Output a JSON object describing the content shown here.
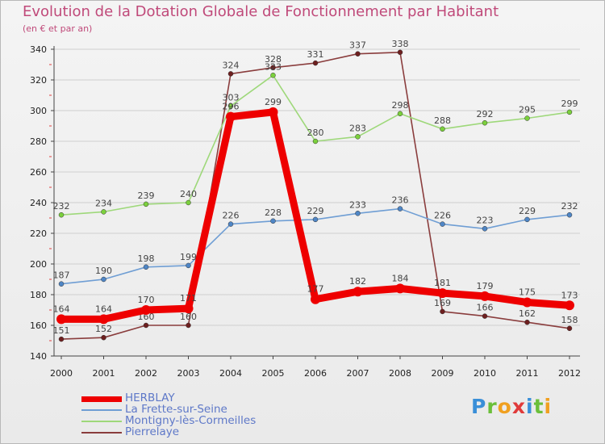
{
  "chart_data": {
    "type": "line",
    "title": "Evolution de la Dotation Globale de Fonctionnement par Habitant",
    "subtitle": "(en € et par an)",
    "categories": [
      "2000",
      "2001",
      "2002",
      "2003",
      "2004",
      "2005",
      "2006",
      "2007",
      "2008",
      "2009",
      "2010",
      "2011",
      "2012"
    ],
    "ylim": [
      140,
      340
    ],
    "yticks": [
      140,
      160,
      180,
      200,
      220,
      240,
      260,
      280,
      300,
      320,
      340
    ],
    "series": [
      {
        "name": "Pierrelaye",
        "color": "#8a3d3d",
        "marker": "#6e1f1f",
        "values": [
          151,
          152,
          160,
          160,
          324,
          328,
          331,
          337,
          338,
          169,
          166,
          162,
          158
        ]
      },
      {
        "name": "Montigny-lès-Cormeilles",
        "color": "#9ed87a",
        "marker": "#7bd03c",
        "values": [
          232,
          234,
          239,
          240,
          303,
          323,
          280,
          283,
          298,
          288,
          292,
          295,
          299
        ]
      },
      {
        "name": "La Frette-sur-Seine",
        "color": "#6f9ed4",
        "marker": "#4f86c6",
        "values": [
          187,
          190,
          198,
          199,
          226,
          228,
          229,
          233,
          236,
          226,
          223,
          229,
          232
        ]
      },
      {
        "name": "HERBLAY",
        "color": "#ee0000",
        "marker": "#ee0000",
        "values": [
          164,
          164,
          170,
          171,
          296,
          299,
          177,
          182,
          184,
          181,
          179,
          175,
          173
        ]
      }
    ],
    "legend": [
      "HERBLAY",
      "La Frette-sur-Seine",
      "Montigny-lès-Cormeilles",
      "Pierrelaye"
    ],
    "legend_position": "bottom-left"
  },
  "logo": {
    "text": "Proxiti",
    "colors": [
      "#3a8fd8",
      "#6bbf3a",
      "#f0a020",
      "#e03a3a",
      "#3a8fd8",
      "#6bbf3a",
      "#f0a020"
    ]
  }
}
